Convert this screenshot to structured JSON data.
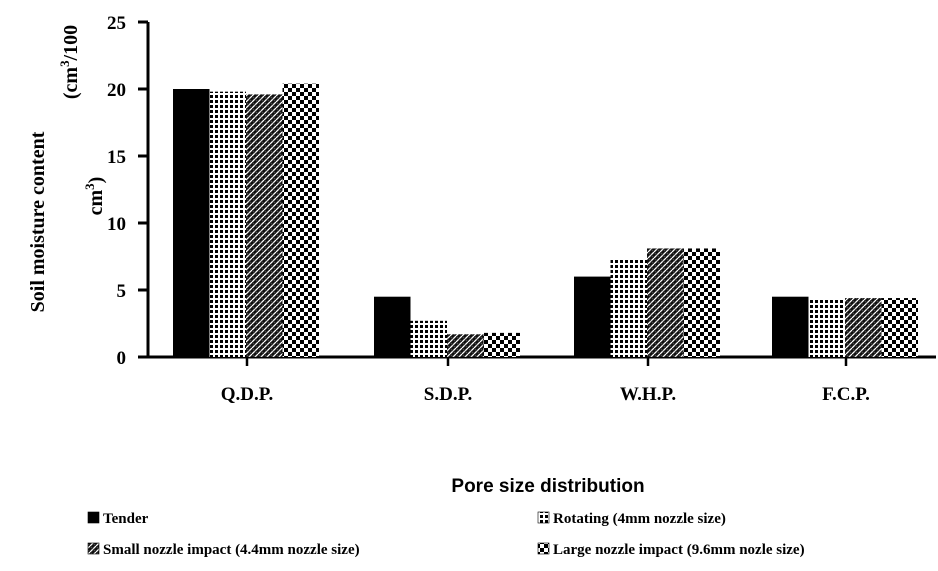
{
  "chart_data": {
    "type": "bar",
    "categories": [
      "Q.D.P.",
      "S.D.P.",
      "W.H.P.",
      "F.C.P."
    ],
    "series": [
      {
        "name": "Tender",
        "values": [
          20.0,
          4.5,
          6.0,
          4.5
        ],
        "pattern": "solid"
      },
      {
        "name": "Rotating (4mm nozzle size)",
        "values": [
          19.8,
          2.7,
          7.3,
          4.4
        ],
        "pattern": "grid"
      },
      {
        "name": "Small nozzle impact (4.4mm nozzle size)",
        "values": [
          19.6,
          1.7,
          8.1,
          4.4
        ],
        "pattern": "diagonal"
      },
      {
        "name": "Large nozzle impact (9.6mm nozle size)",
        "values": [
          20.4,
          1.8,
          8.1,
          4.4
        ],
        "pattern": "checker"
      }
    ],
    "xlabel": "Pore size distribution",
    "ylabel": "Soil moisture content",
    "ylabel_unit": {
      "open": "(cm",
      "sup1": "3",
      "mid": "/100",
      "line2": "cm",
      "sup2": "3",
      "close": ")"
    },
    "yticks": [
      "0",
      "5",
      "10",
      "15",
      "20",
      "25"
    ],
    "ylim": [
      0,
      25
    ],
    "grid": false,
    "legend_position": "bottom"
  }
}
